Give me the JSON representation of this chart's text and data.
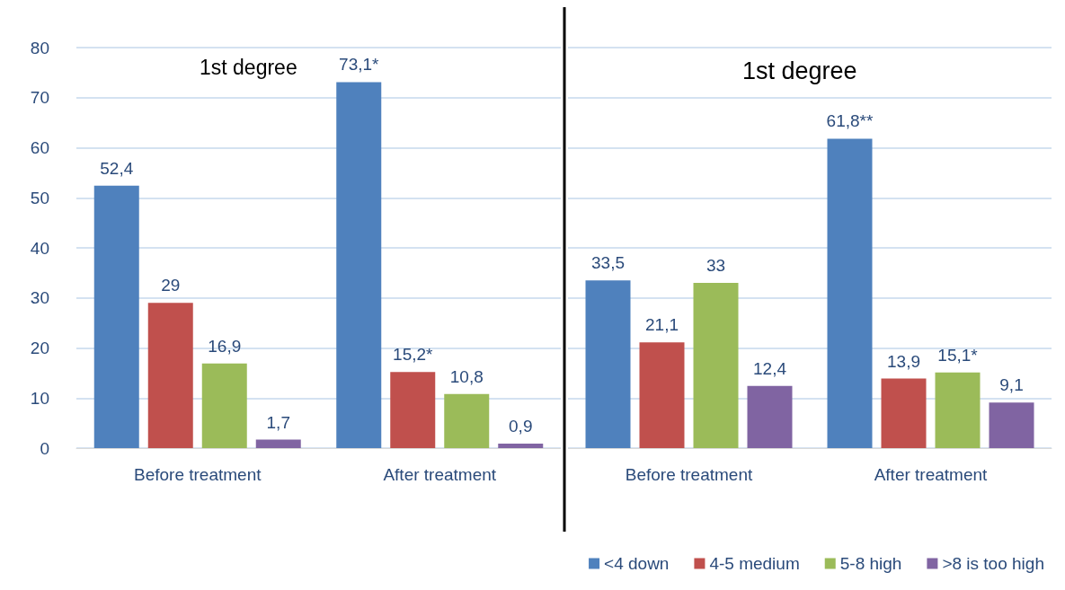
{
  "chart_data": [
    {
      "type": "bar",
      "categories": [
        "Before treatment",
        "After treatment"
      ],
      "series": [
        {
          "color": "#4f81bd",
          "values": [
            52.4,
            73.1
          ],
          "value_labels": [
            "52,4",
            "73,1*"
          ]
        },
        {
          "color": "#c0504d",
          "values": [
            29,
            15.2
          ],
          "value_labels": [
            "29",
            "15,2*"
          ]
        },
        {
          "color": "#9bbb59",
          "values": [
            16.9,
            10.8
          ],
          "value_labels": [
            "16,9",
            "10,8"
          ]
        },
        {
          "color": "#8064a2",
          "values": [
            1.7,
            0.9
          ],
          "value_labels": [
            "1,7",
            "0,9"
          ]
        }
      ],
      "ylim": [
        0,
        80
      ],
      "yticks": [
        0,
        10,
        20,
        30,
        40,
        50,
        60,
        70,
        80
      ],
      "grid": "y",
      "annotations": [
        "1st degree"
      ]
    },
    {
      "type": "bar",
      "categories": [
        "Before treatment",
        "After treatment"
      ],
      "series": [
        {
          "name": "<4 down",
          "color": "#4f81bd",
          "values": [
            33.5,
            61.8
          ],
          "value_labels": [
            "33,5",
            "61,8**"
          ]
        },
        {
          "name": "4-5 medium",
          "color": "#c0504d",
          "values": [
            21.1,
            13.9
          ],
          "value_labels": [
            "21,1",
            "13,9"
          ]
        },
        {
          "name": "5-8 high",
          "color": "#9bbb59",
          "values": [
            33,
            15.1
          ],
          "value_labels": [
            "33",
            "15,1*"
          ]
        },
        {
          "name": ">8 is too high",
          "color": "#8064a2",
          "values": [
            12.4,
            9.1
          ],
          "value_labels": [
            "12,4",
            "9,1"
          ]
        }
      ],
      "ylim": [
        0,
        80
      ],
      "yticks": [
        0,
        10,
        20,
        30,
        40,
        50,
        60,
        70,
        80
      ],
      "grid": "y",
      "tick_labels": "x",
      "legend": "bottom",
      "annotations": [
        "1st degree"
      ]
    }
  ]
}
